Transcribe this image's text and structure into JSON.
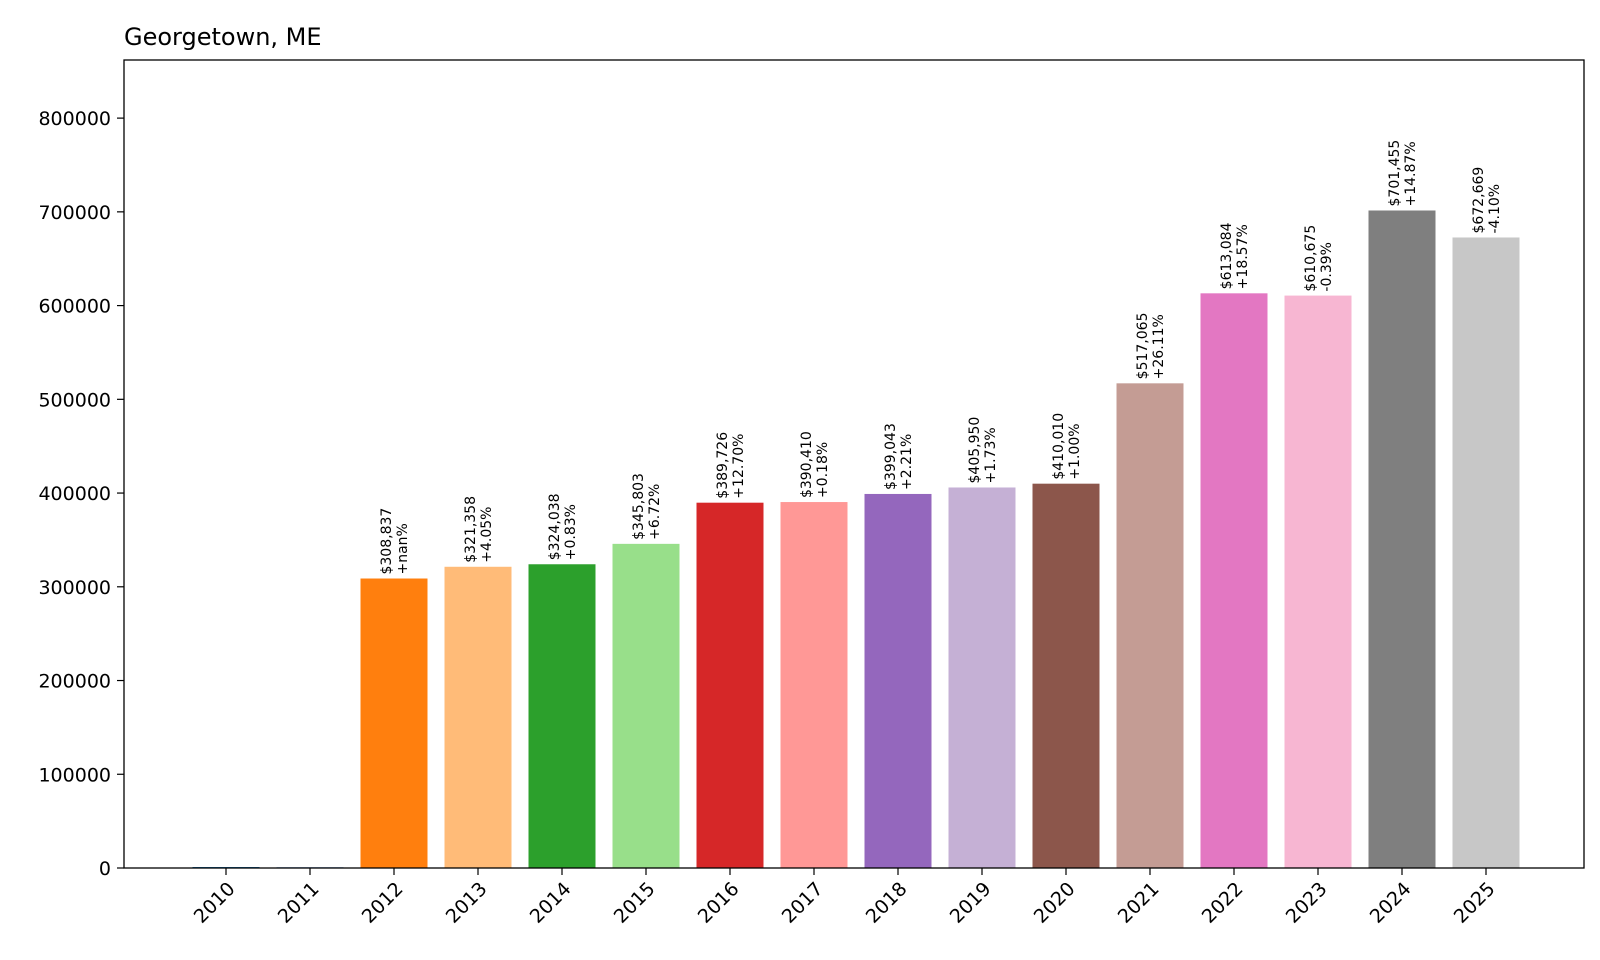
{
  "chart_data": {
    "type": "bar",
    "title": "Georgetown, ME",
    "xlabel": "",
    "ylabel": "",
    "categories": [
      "2010",
      "2011",
      "2012",
      "2013",
      "2014",
      "2015",
      "2016",
      "2017",
      "2018",
      "2019",
      "2020",
      "2021",
      "2022",
      "2023",
      "2024",
      "2025"
    ],
    "values": [
      0,
      0,
      308837,
      321358,
      324038,
      345803,
      389726,
      390410,
      399043,
      405950,
      410010,
      517065,
      613084,
      610675,
      701455,
      672669
    ],
    "value_labels": [
      "",
      "",
      "$308,837",
      "$321,358",
      "$324,038",
      "$345,803",
      "$389,726",
      "$390,410",
      "$399,043",
      "$405,950",
      "$410,010",
      "$517,065",
      "$613,084",
      "$610,675",
      "$701,455",
      "$672,669"
    ],
    "change_labels": [
      "",
      "",
      "+nan%",
      "+4.05%",
      "+0.83%",
      "+6.72%",
      "+12.70%",
      "+0.18%",
      "+2.21%",
      "+1.73%",
      "+1.00%",
      "+26.11%",
      "+18.57%",
      "-0.39%",
      "+14.87%",
      "-4.10%"
    ],
    "colors": [
      "#1f77b4",
      "#aec7e8",
      "#ff7f0e",
      "#ffbb78",
      "#2ca02c",
      "#98df8a",
      "#d62728",
      "#ff9896",
      "#9467bd",
      "#c5b0d5",
      "#8c564b",
      "#c49c94",
      "#e377c2",
      "#f7b6d2",
      "#7f7f7f",
      "#c7c7c7"
    ],
    "y_ticks": [
      0,
      100000,
      200000,
      300000,
      400000,
      500000,
      600000,
      700000,
      800000
    ],
    "y_tick_labels": [
      "0",
      "100000",
      "200000",
      "300000",
      "400000",
      "500000",
      "600000",
      "700000",
      "800000"
    ],
    "ylim": [
      0,
      862000
    ],
    "grid": false,
    "legend": "none"
  }
}
